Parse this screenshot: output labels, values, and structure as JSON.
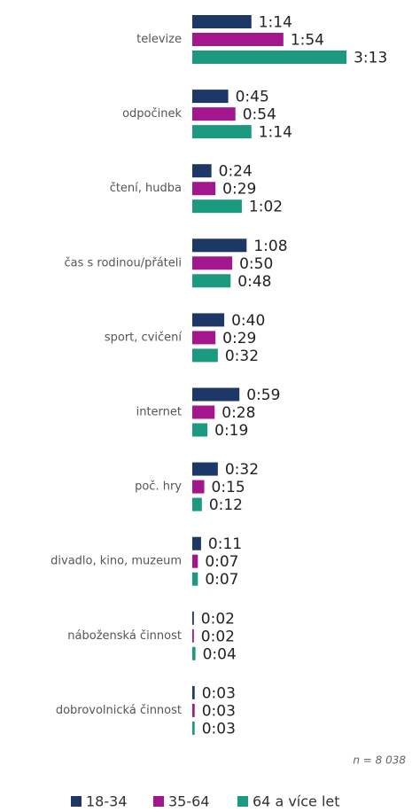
{
  "chart_data": {
    "type": "bar",
    "orientation": "horizontal",
    "categories": [
      "televize",
      "odpočinek",
      "čtení, hudba",
      "čas s rodinou/přáteli",
      "sport, cvičení",
      "internet",
      "poč. hry",
      "divadlo, kino, muzeum",
      "náboženská činnost",
      "dobrovolnická činnost"
    ],
    "series": [
      {
        "name": "18-34",
        "color": "#1d3766",
        "values": [
          74,
          45,
          24,
          68,
          40,
          59,
          32,
          11,
          2,
          3
        ],
        "value_labels": [
          "1:14",
          "0:45",
          "0:24",
          "1:08",
          "0:40",
          "0:59",
          "0:32",
          "0:11",
          "0:02",
          "0:03"
        ]
      },
      {
        "name": "35-64",
        "color": "#a3168e",
        "values": [
          114,
          54,
          29,
          50,
          29,
          28,
          15,
          7,
          2,
          3
        ],
        "value_labels": [
          "1:54",
          "0:54",
          "0:29",
          "0:50",
          "0:29",
          "0:28",
          "0:15",
          "0:07",
          "0:02",
          "0:03"
        ]
      },
      {
        "name": "64 a více let",
        "color": "#1b9a80",
        "values": [
          193,
          74,
          62,
          48,
          32,
          19,
          12,
          7,
          4,
          3
        ],
        "value_labels": [
          "3:13",
          "1:14",
          "1:02",
          "0:48",
          "0:32",
          "0:19",
          "0:12",
          "0:07",
          "0:04",
          "0:03"
        ]
      }
    ],
    "annotation": "n = 8 038"
  }
}
